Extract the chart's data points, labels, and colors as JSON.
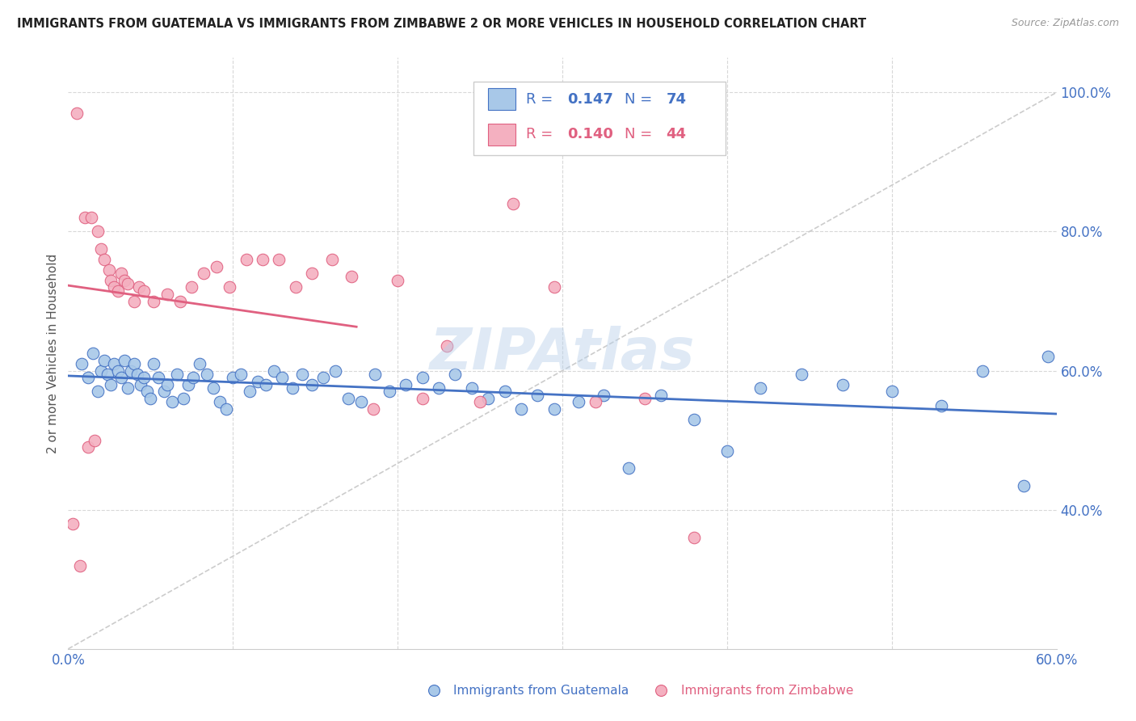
{
  "title": "IMMIGRANTS FROM GUATEMALA VS IMMIGRANTS FROM ZIMBABWE 2 OR MORE VEHICLES IN HOUSEHOLD CORRELATION CHART",
  "source": "Source: ZipAtlas.com",
  "ylabel": "2 or more Vehicles in Household",
  "xlim": [
    0.0,
    0.6
  ],
  "ylim": [
    0.2,
    1.05
  ],
  "guatemala_color": "#a8c8e8",
  "zimbabwe_color": "#f4b0c0",
  "trendline_guatemala_color": "#4472c4",
  "trendline_zimbabwe_color": "#e06080",
  "diagonal_color": "#cccccc",
  "watermark": "ZIPAtlas",
  "guatemala_x": [
    0.008,
    0.012,
    0.015,
    0.018,
    0.02,
    0.022,
    0.024,
    0.026,
    0.028,
    0.03,
    0.032,
    0.034,
    0.036,
    0.038,
    0.04,
    0.042,
    0.044,
    0.046,
    0.048,
    0.05,
    0.052,
    0.055,
    0.058,
    0.06,
    0.063,
    0.066,
    0.07,
    0.073,
    0.076,
    0.08,
    0.084,
    0.088,
    0.092,
    0.096,
    0.1,
    0.105,
    0.11,
    0.115,
    0.12,
    0.125,
    0.13,
    0.136,
    0.142,
    0.148,
    0.155,
    0.162,
    0.17,
    0.178,
    0.186,
    0.195,
    0.205,
    0.215,
    0.225,
    0.235,
    0.245,
    0.255,
    0.265,
    0.275,
    0.285,
    0.295,
    0.31,
    0.325,
    0.34,
    0.36,
    0.38,
    0.4,
    0.42,
    0.445,
    0.47,
    0.5,
    0.53,
    0.555,
    0.58,
    0.595
  ],
  "guatemala_y": [
    0.61,
    0.59,
    0.625,
    0.57,
    0.6,
    0.615,
    0.595,
    0.58,
    0.61,
    0.6,
    0.59,
    0.615,
    0.575,
    0.6,
    0.61,
    0.595,
    0.58,
    0.59,
    0.57,
    0.56,
    0.61,
    0.59,
    0.57,
    0.58,
    0.555,
    0.595,
    0.56,
    0.58,
    0.59,
    0.61,
    0.595,
    0.575,
    0.555,
    0.545,
    0.59,
    0.595,
    0.57,
    0.585,
    0.58,
    0.6,
    0.59,
    0.575,
    0.595,
    0.58,
    0.59,
    0.6,
    0.56,
    0.555,
    0.595,
    0.57,
    0.58,
    0.59,
    0.575,
    0.595,
    0.575,
    0.56,
    0.57,
    0.545,
    0.565,
    0.545,
    0.555,
    0.565,
    0.46,
    0.565,
    0.53,
    0.485,
    0.575,
    0.595,
    0.58,
    0.57,
    0.55,
    0.6,
    0.435,
    0.62
  ],
  "zimbabwe_x": [
    0.005,
    0.01,
    0.014,
    0.018,
    0.02,
    0.022,
    0.025,
    0.026,
    0.028,
    0.03,
    0.032,
    0.034,
    0.036,
    0.04,
    0.043,
    0.046,
    0.052,
    0.06,
    0.068,
    0.075,
    0.082,
    0.09,
    0.098,
    0.108,
    0.118,
    0.128,
    0.138,
    0.148,
    0.16,
    0.172,
    0.185,
    0.2,
    0.215,
    0.23,
    0.25,
    0.27,
    0.295,
    0.32,
    0.35,
    0.38,
    0.003,
    0.007,
    0.012,
    0.016
  ],
  "zimbabwe_y": [
    0.97,
    0.82,
    0.82,
    0.8,
    0.775,
    0.76,
    0.745,
    0.73,
    0.72,
    0.715,
    0.74,
    0.73,
    0.725,
    0.7,
    0.72,
    0.715,
    0.7,
    0.71,
    0.7,
    0.72,
    0.74,
    0.75,
    0.72,
    0.76,
    0.76,
    0.76,
    0.72,
    0.74,
    0.76,
    0.735,
    0.545,
    0.73,
    0.56,
    0.635,
    0.555,
    0.84,
    0.72,
    0.555,
    0.56,
    0.36,
    0.38,
    0.32,
    0.49,
    0.5
  ]
}
